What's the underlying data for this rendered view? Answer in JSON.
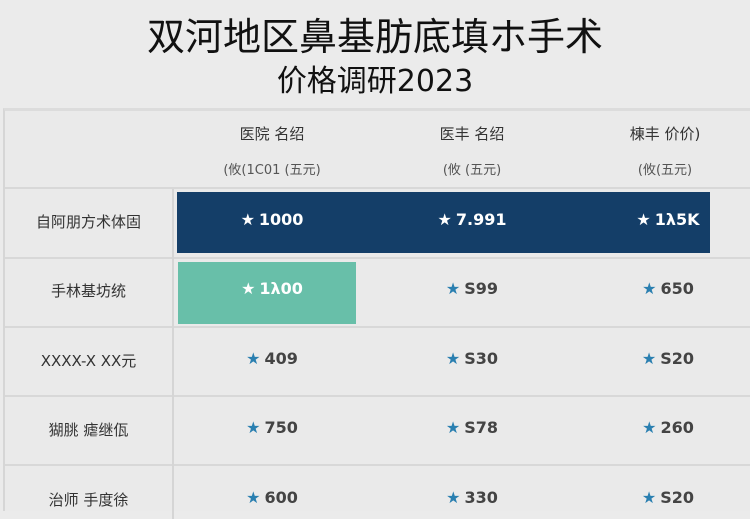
{
  "title": {
    "line1": "双河地区鼻基肪底填ホ手术",
    "line2": "价格调研2023"
  },
  "colors": {
    "highlight_dark": "#143e68",
    "highlight_green": "#68bfa9",
    "star": "#2a7fb0"
  },
  "columns": [
    {
      "header": "医院 名绍",
      "sub": "(攸(1C01 (五元)"
    },
    {
      "header": "医丰 名绍",
      "sub": "(攸 (五元)"
    },
    {
      "header": "棟丰 价价)",
      "sub": "(攸(五元)"
    }
  ],
  "rows": [
    {
      "label": "自阿朋方术体固",
      "values": [
        "1000",
        "7.991",
        "1λ5K"
      ]
    },
    {
      "label": "手林基坊统",
      "values": [
        "1λ00",
        "S99",
        "650"
      ]
    },
    {
      "label": "XXXX-X XX元",
      "values": [
        "409",
        "S30",
        "S20"
      ]
    },
    {
      "label": "猢朓 瘧继佤",
      "values": [
        "750",
        "S78",
        "260"
      ]
    },
    {
      "label": "治师 手度徐",
      "values": [
        "600",
        "330",
        "S20"
      ]
    }
  ],
  "star_icon": "star-icon"
}
